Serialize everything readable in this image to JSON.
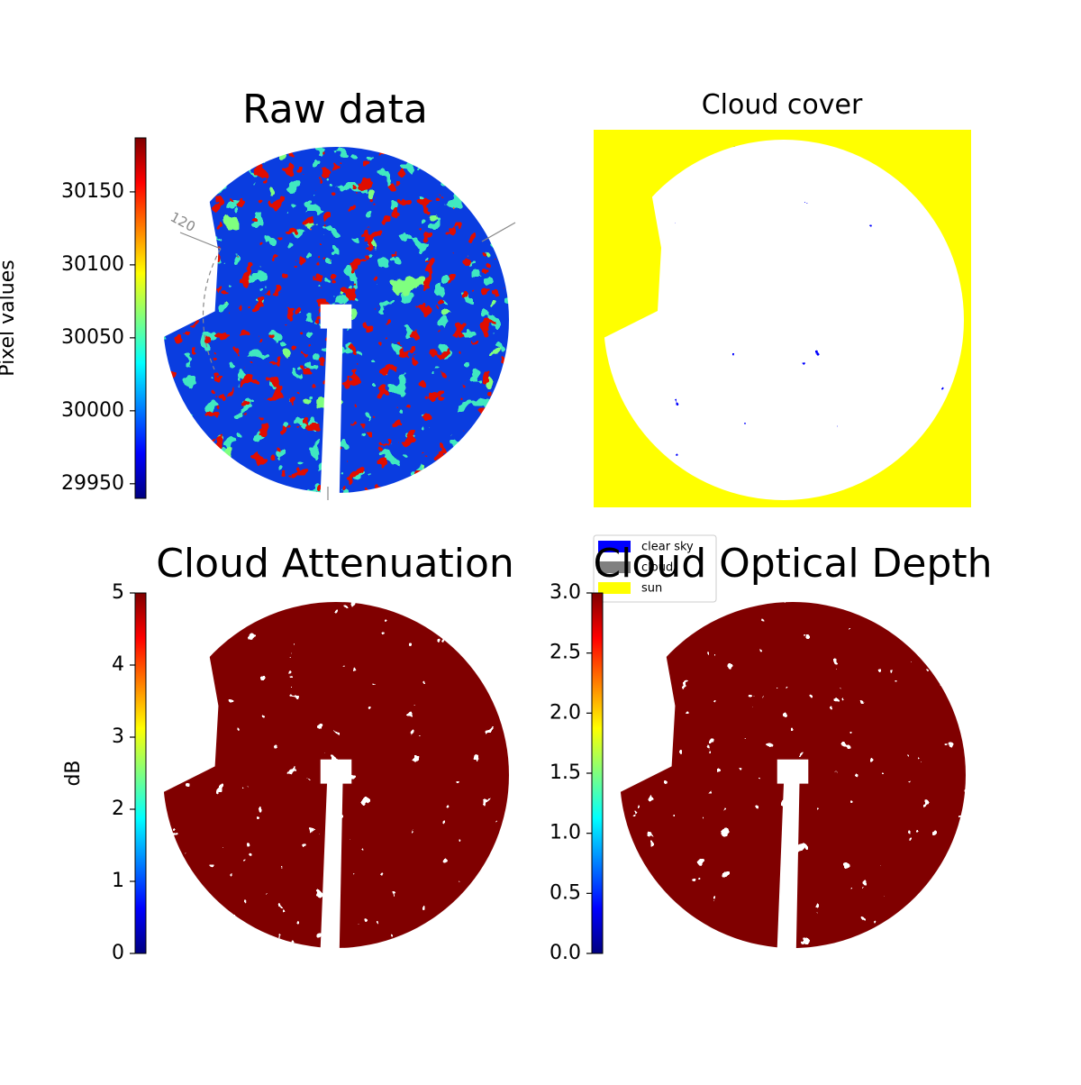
{
  "chart_data": [
    {
      "type": "image",
      "title": "Raw data",
      "annotations": [
        "120"
      ],
      "colorbar": {
        "label": "Pixel values",
        "cmap": "jet",
        "lim": [
          29940,
          30187
        ],
        "ticks": [
          29950,
          30000,
          30050,
          30100,
          30150
        ]
      }
    },
    {
      "type": "mask",
      "title": "Cloud cover",
      "series": [
        {
          "name": "clear sky",
          "color": "#0000ff"
        },
        {
          "name": "cloud",
          "color": "#808080"
        },
        {
          "name": "sun",
          "color": "#ffff00"
        }
      ]
    },
    {
      "type": "image",
      "title": "Cloud Attenuation",
      "colorbar": {
        "label": "dB",
        "cmap": "jet",
        "lim": [
          0,
          5
        ],
        "ticks": [
          0,
          1,
          2,
          3,
          4,
          5
        ]
      }
    },
    {
      "type": "image",
      "title": "Cloud Optical Depth",
      "colorbar": {
        "cmap": "jet",
        "lim": [
          0,
          3
        ],
        "ticks": [
          {
            "value": 0,
            "label": "0.0"
          },
          0.5,
          {
            "value": 1,
            "label": "1.0"
          },
          1.5,
          {
            "value": 2,
            "label": "2.0"
          },
          2.5,
          {
            "value": 3,
            "label": "3.0"
          }
        ]
      }
    }
  ]
}
